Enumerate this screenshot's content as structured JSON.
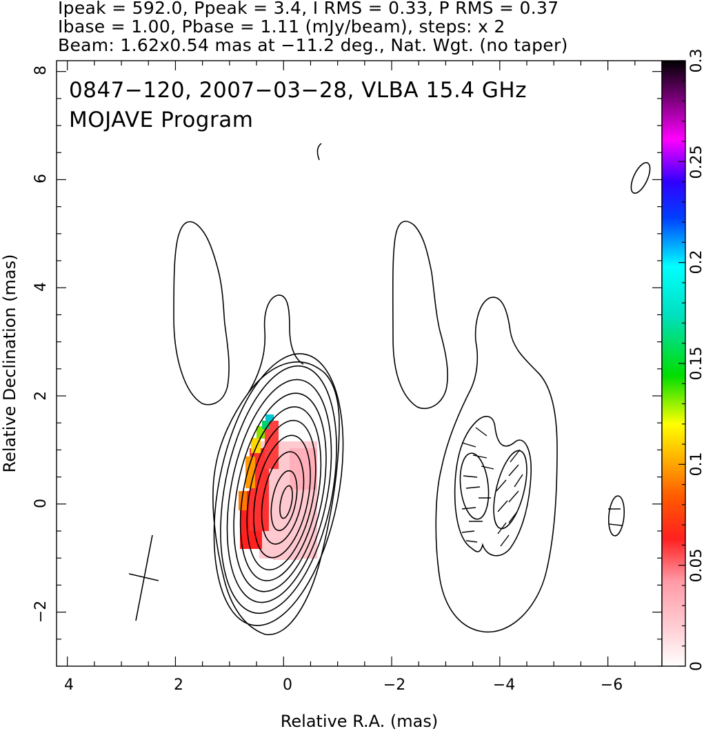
{
  "header": {
    "line1": "Ipeak = 592.0, Ppeak = 3.4, I RMS = 0.33, P RMS = 0.37",
    "line2": "Ibase = 1.00, Pbase = 1.11 (mJy/beam), steps: x 2",
    "line3": "Beam: 1.62x0.54 mas at −11.2 deg., Nat. Wgt. (no taper)"
  },
  "chart_data": [
    {
      "type": "heatmap",
      "title": "0847−120, 2007−03−28, VLBA 15.4 GHz",
      "subtitle": "MOJAVE Program",
      "xlabel": "Relative R.A. (mas)",
      "ylabel": "Relative Declination (mas)",
      "xlim": [
        4.2,
        -7.0
      ],
      "ylim": [
        -3.0,
        8.2
      ],
      "xticks": [
        4,
        2,
        0,
        -2,
        -4,
        -6
      ],
      "yticks": [
        -2,
        0,
        2,
        4,
        6,
        8
      ],
      "xtick_labels": [
        "4",
        "2",
        "0",
        "−2",
        "−4",
        "−6"
      ],
      "ytick_labels": [
        "−2",
        "0",
        "2",
        "4",
        "6",
        "8"
      ],
      "grid": false,
      "peak_position": [
        0.0,
        0.0
      ],
      "beam": {
        "major_mas": 1.62,
        "minor_mas": 0.54,
        "pa_deg": -11.2
      }
    },
    {
      "type": "heatmap",
      "title": "",
      "xlabel": "",
      "ylabel": "",
      "orientation": "vertical colorbar",
      "ylim": [
        0,
        0.3
      ],
      "yticks": [
        0,
        0.05,
        0.1,
        0.15,
        0.2,
        0.25,
        0.3
      ],
      "ytick_labels": [
        "0",
        "0.05",
        "0.1",
        "0.15",
        "0.2",
        "0.25",
        "0.3"
      ],
      "colors": [
        "#ffffff",
        "#ffb0b8",
        "#ff0000",
        "#ff8c00",
        "#ffff00",
        "#00e000",
        "#00ffff",
        "#0000ff",
        "#ff00ff",
        "#000000"
      ]
    }
  ]
}
